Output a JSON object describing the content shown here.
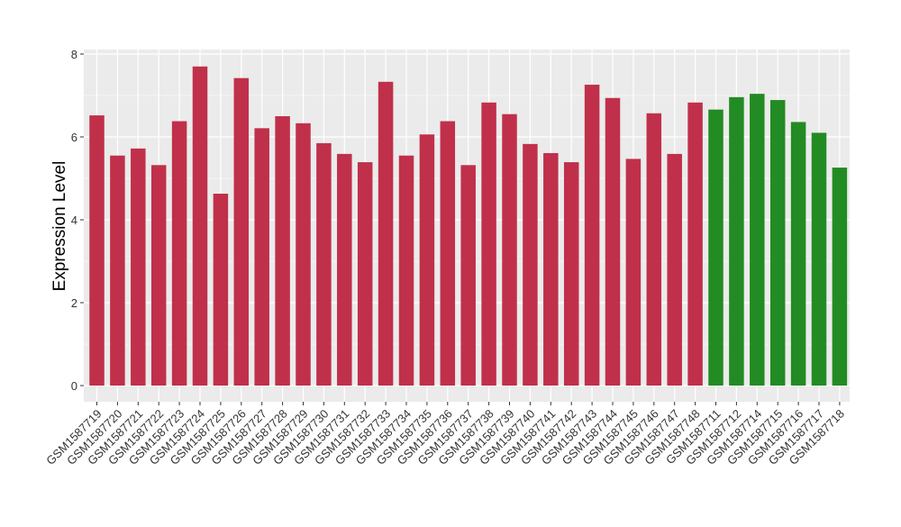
{
  "chart_data": {
    "type": "bar",
    "ylabel": "Expression Level",
    "ylim": [
      0,
      8
    ],
    "yticks": [
      0,
      2,
      4,
      6,
      8
    ],
    "grid": true,
    "categories": [
      "GSM1587719",
      "GSM1587720",
      "GSM1587721",
      "GSM1587722",
      "GSM1587723",
      "GSM1587724",
      "GSM1587725",
      "GSM1587726",
      "GSM1587727",
      "GSM1587728",
      "GSM1587729",
      "GSM1587730",
      "GSM1587731",
      "GSM1587732",
      "GSM1587733",
      "GSM1587734",
      "GSM1587735",
      "GSM1587736",
      "GSM1587737",
      "GSM1587738",
      "GSM1587739",
      "GSM1587740",
      "GSM1587741",
      "GSM1587742",
      "GSM1587743",
      "GSM1587744",
      "GSM1587745",
      "GSM1587746",
      "GSM1587747",
      "GSM1587748",
      "GSM1587711",
      "GSM1587712",
      "GSM1587714",
      "GSM1587715",
      "GSM1587716",
      "GSM1587717",
      "GSM1587718"
    ],
    "values": [
      6.52,
      5.55,
      5.72,
      5.32,
      6.38,
      7.7,
      4.63,
      7.42,
      6.21,
      6.5,
      6.33,
      5.85,
      5.59,
      5.39,
      7.33,
      5.55,
      6.06,
      6.38,
      5.32,
      6.83,
      6.55,
      5.83,
      5.61,
      5.39,
      7.26,
      6.94,
      5.47,
      6.57,
      5.59,
      6.83,
      6.66,
      6.96,
      7.04,
      6.89,
      6.36,
      6.1,
      5.26
    ],
    "groups": [
      "red",
      "red",
      "red",
      "red",
      "red",
      "red",
      "red",
      "red",
      "red",
      "red",
      "red",
      "red",
      "red",
      "red",
      "red",
      "red",
      "red",
      "red",
      "red",
      "red",
      "red",
      "red",
      "red",
      "red",
      "red",
      "red",
      "red",
      "red",
      "red",
      "red",
      "green",
      "green",
      "green",
      "green",
      "green",
      "green",
      "green"
    ],
    "colors": {
      "red": "#c0304a",
      "green": "#238b23",
      "panel": "#ebebeb",
      "grid": "#ffffff"
    }
  }
}
